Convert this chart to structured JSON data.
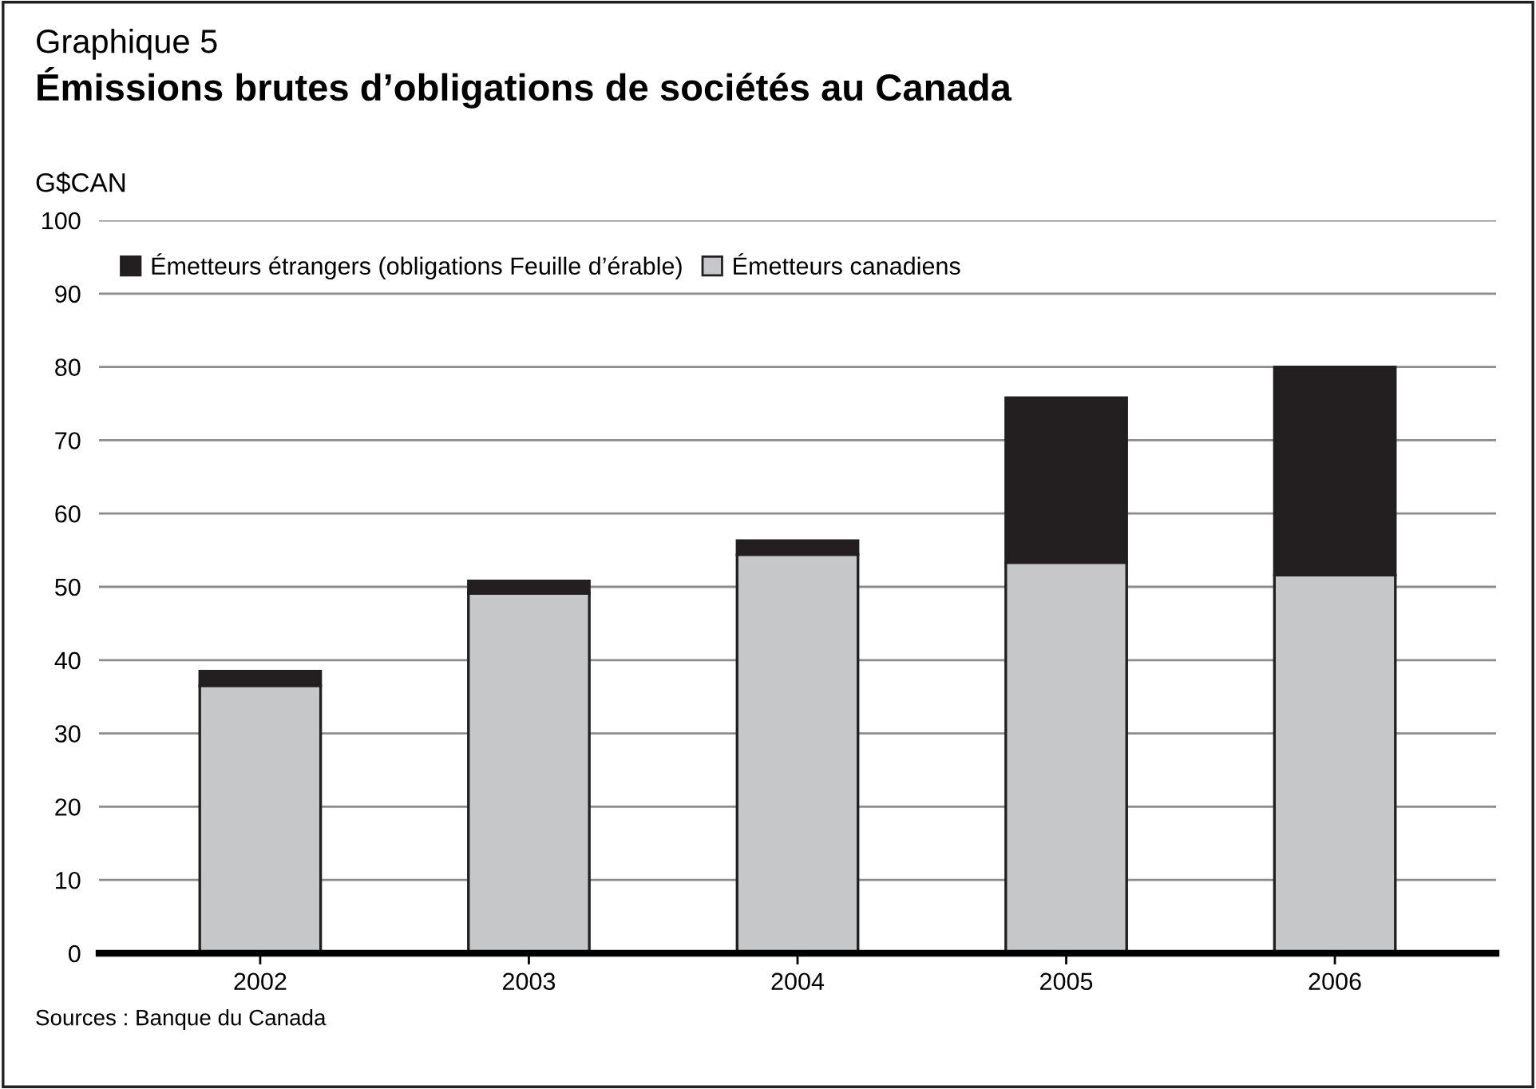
{
  "chart_data": {
    "type": "bar",
    "stacked": true,
    "subtitle": "Graphique 5",
    "title": "Émissions brutes d’obligations de sociétés au Canada",
    "ylabel": "G$CAN",
    "categories": [
      "2002",
      "2003",
      "2004",
      "2005",
      "2006"
    ],
    "series": [
      {
        "name": "Émetteurs canadiens",
        "color": "#c6c7c9",
        "values": [
          36.5,
          49.1,
          54.4,
          53.3,
          51.6
        ]
      },
      {
        "name": "Émetteurs étrangers (obligations Feuille d’érable)",
        "color": "#231f20",
        "values": [
          2.0,
          1.7,
          1.9,
          22.5,
          28.4
        ]
      }
    ],
    "ylim": [
      0,
      100
    ],
    "yticks": [
      0,
      10,
      20,
      30,
      40,
      50,
      60,
      70,
      80,
      90,
      100
    ],
    "grid": "y",
    "legend": "top left",
    "annotations": [
      "Sources : Banque du Canada"
    ]
  }
}
